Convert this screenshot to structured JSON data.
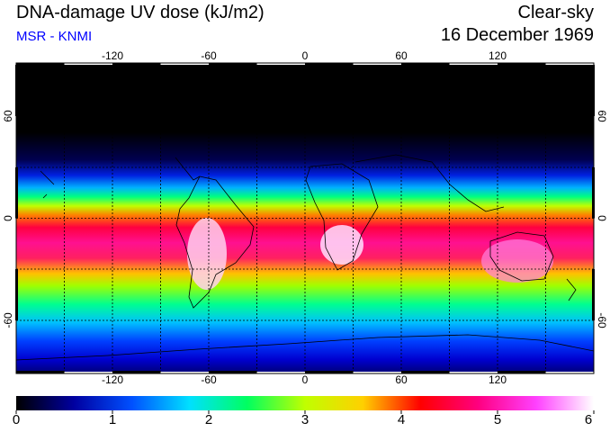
{
  "header": {
    "title": "DNA-damage UV dose (kJ/m2)",
    "source": "MSR - KNMI",
    "mode": "Clear-sky",
    "date": "16 December 1969"
  },
  "map": {
    "lon_ticks": [
      "-120",
      "-60",
      "0",
      "60",
      "120"
    ],
    "lat_ticks": [
      "60",
      "0",
      "-60"
    ]
  },
  "colorbar": {
    "labels": [
      "0",
      "1",
      "2",
      "3",
      "4",
      "5",
      "6"
    ],
    "min": 0,
    "max": 6,
    "colors": [
      "#000000",
      "#0000a0",
      "#0050ff",
      "#00e0ff",
      "#00ff60",
      "#c0ff00",
      "#ffd000",
      "#ff0000",
      "#ff0080",
      "#ff40ff",
      "#ffffff"
    ]
  }
}
